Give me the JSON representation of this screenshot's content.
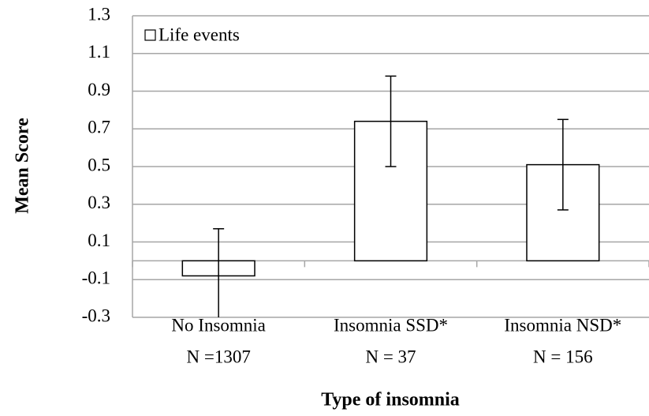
{
  "chart_data": {
    "type": "bar",
    "categories": [
      [
        "No Insomnia",
        "N =1307"
      ],
      [
        "Insomnia SSD*",
        "N = 37"
      ],
      [
        "Insomnia NSD*",
        "N = 156"
      ]
    ],
    "series": [
      {
        "name": "Life events",
        "color": "#ffffff",
        "values": [
          -0.08,
          0.74,
          0.51
        ],
        "errors": [
          0.25,
          0.24,
          0.24
        ]
      }
    ],
    "ylim": [
      -0.3,
      1.3
    ],
    "yticks": [
      -0.3,
      -0.1,
      0.1,
      0.3,
      0.5,
      0.7,
      0.9,
      1.1,
      1.3
    ],
    "y_label": "Mean Score",
    "x_label": "Type of insomnia",
    "grid": true,
    "legend": "top-left"
  }
}
